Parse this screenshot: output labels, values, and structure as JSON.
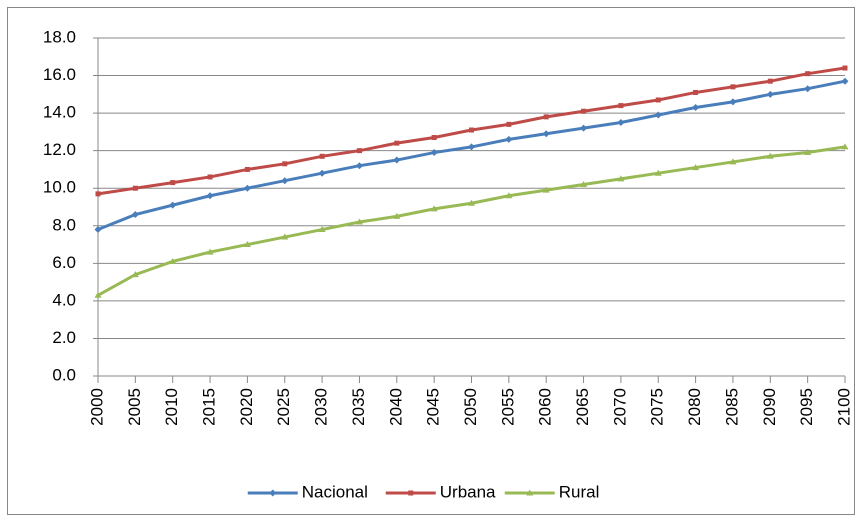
{
  "chart_data": {
    "type": "line",
    "x": [
      2000,
      2005,
      2010,
      2015,
      2020,
      2025,
      2030,
      2035,
      2040,
      2045,
      2050,
      2055,
      2060,
      2065,
      2070,
      2075,
      2080,
      2085,
      2090,
      2095,
      2100
    ],
    "series": [
      {
        "name": "Nacional",
        "color": "#4a7ebb",
        "marker": "diamond",
        "values": [
          7.8,
          8.6,
          9.1,
          9.6,
          10.0,
          10.4,
          10.8,
          11.2,
          11.5,
          11.9,
          12.2,
          12.6,
          12.9,
          13.2,
          13.5,
          13.9,
          14.3,
          14.6,
          15.0,
          15.3,
          15.7
        ]
      },
      {
        "name": "Urbana",
        "color": "#be4b48",
        "marker": "square",
        "values": [
          9.7,
          10.0,
          10.3,
          10.6,
          11.0,
          11.3,
          11.7,
          12.0,
          12.4,
          12.7,
          13.1,
          13.4,
          13.8,
          14.1,
          14.4,
          14.7,
          15.1,
          15.4,
          15.7,
          16.1,
          16.4
        ]
      },
      {
        "name": "Rural",
        "color": "#98b954",
        "marker": "triangle",
        "values": [
          4.3,
          5.4,
          6.1,
          6.6,
          7.0,
          7.4,
          7.8,
          8.2,
          8.5,
          8.9,
          9.2,
          9.6,
          9.9,
          10.2,
          10.5,
          10.8,
          11.1,
          11.4,
          11.7,
          11.9,
          12.2
        ]
      }
    ],
    "xlim": [
      2000,
      2100
    ],
    "xticks": [
      2000,
      2005,
      2010,
      2015,
      2020,
      2025,
      2030,
      2035,
      2040,
      2045,
      2050,
      2055,
      2060,
      2065,
      2070,
      2075,
      2080,
      2085,
      2090,
      2095,
      2100
    ],
    "ylim": [
      0,
      18
    ],
    "yticks": [
      {
        "value": 0,
        "label": "0.0"
      },
      {
        "value": 2,
        "label": "2.0"
      },
      {
        "value": 4,
        "label": "4.0"
      },
      {
        "value": 6,
        "label": "6.0"
      },
      {
        "value": 8,
        "label": "8.0"
      },
      {
        "value": 10,
        "label": "10.0"
      },
      {
        "value": 12,
        "label": "12.0"
      },
      {
        "value": 14,
        "label": "14.0"
      },
      {
        "value": 16,
        "label": "16.0"
      },
      {
        "value": 18,
        "label": "18.0"
      }
    ],
    "grid": true,
    "legend": "bottom"
  }
}
